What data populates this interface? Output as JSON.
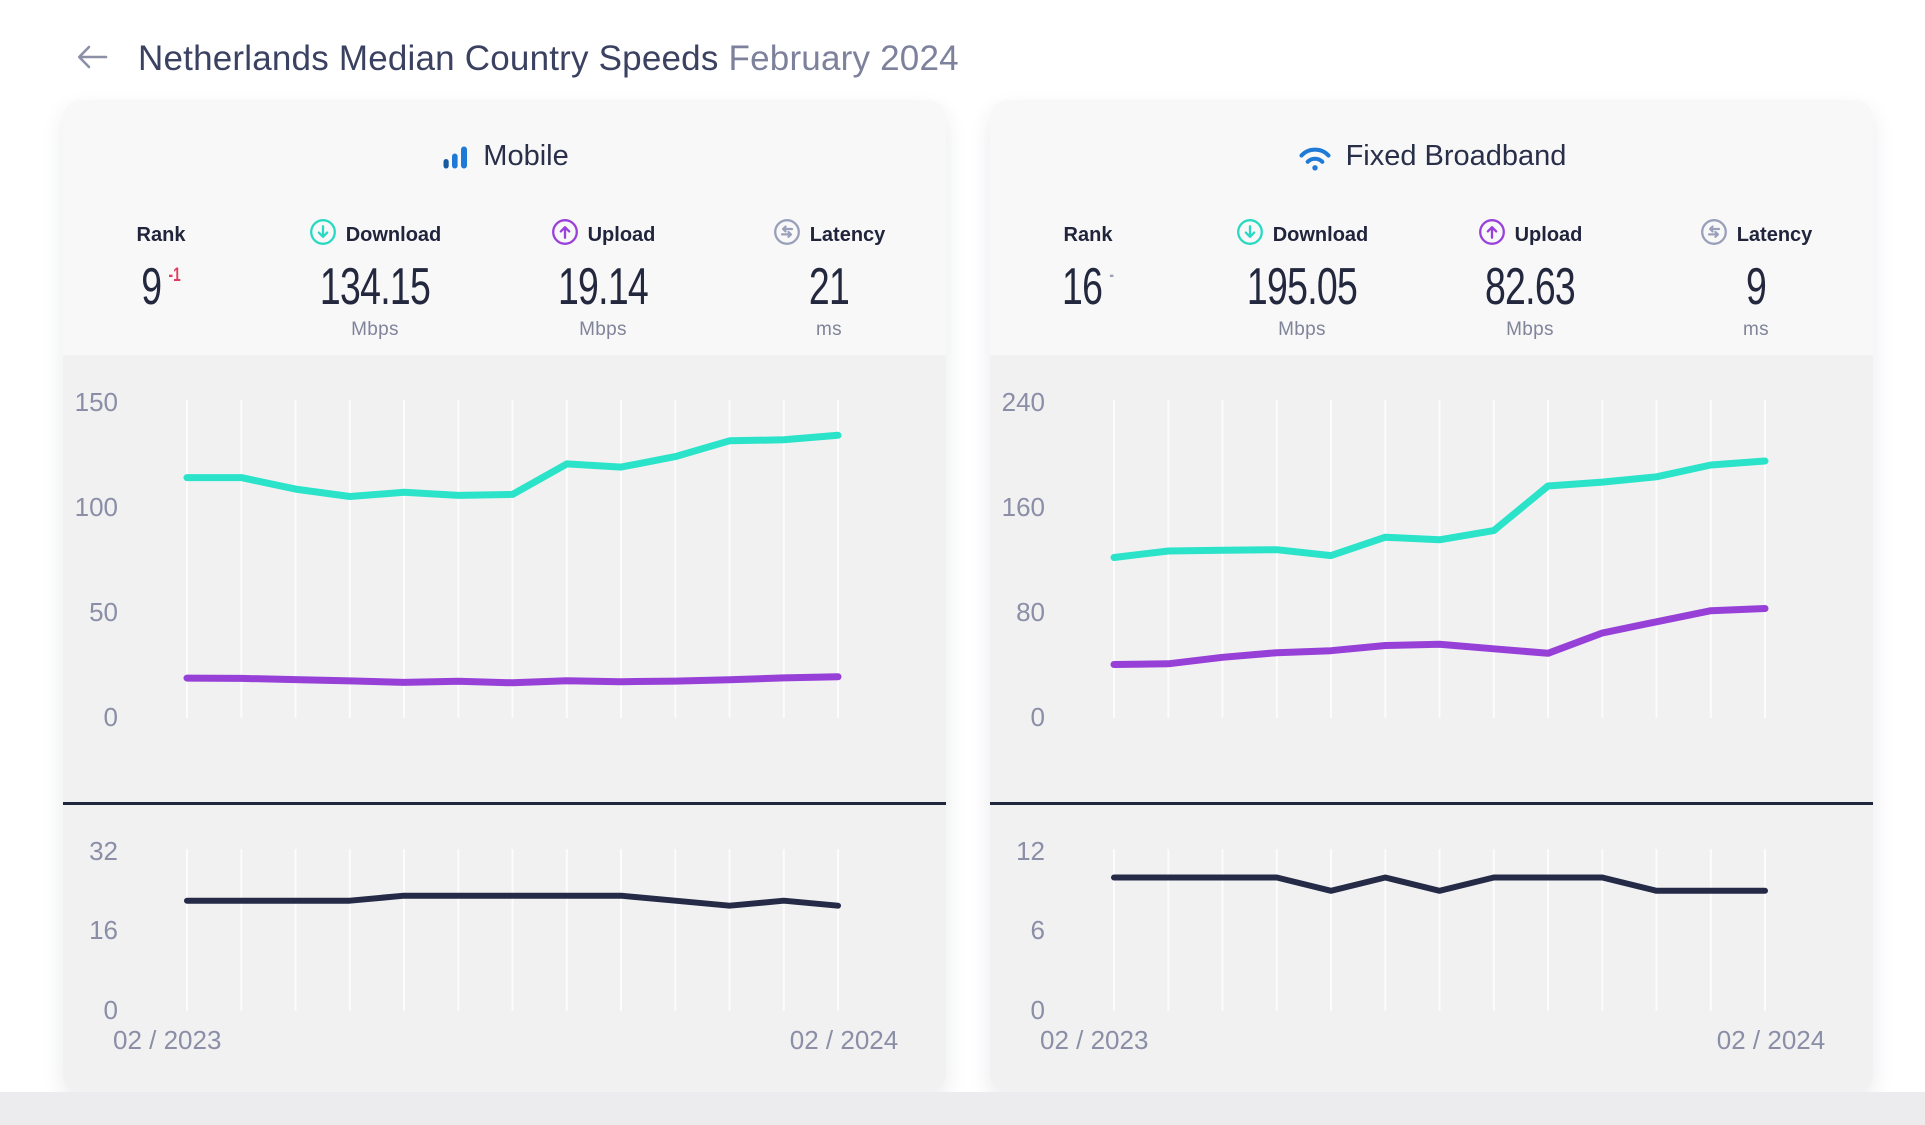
{
  "page": {
    "background": "#ffffff",
    "bottom_strip_color": "#ececee"
  },
  "header": {
    "back_icon": "left-arrow",
    "title": "Netherlands Median Country Speeds",
    "subtitle": "February 2024",
    "title_color": "#3b4160",
    "subtitle_color": "#7d819b"
  },
  "cards": [
    {
      "title": "Mobile",
      "icon": "mobile-signal-bars-icon",
      "stats": {
        "rank": {
          "label": "Rank",
          "value": "9",
          "delta": "-1",
          "delta_color": "#e23b5f"
        },
        "download": {
          "label": "Download",
          "value": "134.15",
          "unit": "Mbps",
          "icon_color": "#2ad9c2"
        },
        "upload": {
          "label": "Upload",
          "value": "19.14",
          "unit": "Mbps",
          "icon_color": "#9a41da"
        },
        "latency": {
          "label": "Latency",
          "value": "21",
          "unit": "ms",
          "icon_color": "#9ba0ba"
        }
      },
      "chart_data": {
        "type": "line",
        "x_labels": [
          "02 / 2023",
          "02 / 2024"
        ],
        "n_points": 13,
        "legend": "none",
        "grid": "vertical-only",
        "main": {
          "ylim": [
            0,
            157.5
          ],
          "y_ticks": [
            150,
            100,
            50,
            0
          ],
          "series": [
            {
              "name": "Download (Mbps)",
              "color": "#2be3c9",
              "values": [
                114,
                114,
                108.5,
                105,
                107,
                105.5,
                106,
                120.5,
                119,
                124,
                131.5,
                132,
                134.15
              ]
            },
            {
              "name": "Upload (Mbps)",
              "color": "#9640d8",
              "values": [
                18.5,
                18.4,
                17.8,
                17.2,
                16.5,
                17,
                16.3,
                17.3,
                16.8,
                17.1,
                17.7,
                18.6,
                19.14
              ]
            }
          ]
        },
        "latency": {
          "ylim": [
            0,
            32
          ],
          "y_ticks": [
            32,
            16,
            0
          ],
          "series": [
            {
              "name": "Latency (ms)",
              "color": "#252b47",
              "values": [
                22,
                22,
                22,
                22,
                23,
                23,
                23,
                23,
                23,
                22,
                21,
                22,
                21
              ]
            }
          ]
        }
      }
    },
    {
      "title": "Fixed Broadband",
      "icon": "wifi-icon",
      "stats": {
        "rank": {
          "label": "Rank",
          "value": "16",
          "delta": "-",
          "delta_color": "#9aa0b5"
        },
        "download": {
          "label": "Download",
          "value": "195.05",
          "unit": "Mbps",
          "icon_color": "#2ad9c2"
        },
        "upload": {
          "label": "Upload",
          "value": "82.63",
          "unit": "Mbps",
          "icon_color": "#9a41da"
        },
        "latency": {
          "label": "Latency",
          "value": "9",
          "unit": "ms",
          "icon_color": "#9ba0ba"
        }
      },
      "chart_data": {
        "type": "line",
        "x_labels": [
          "02 / 2023",
          "02 / 2024"
        ],
        "n_points": 13,
        "legend": "none",
        "grid": "vertical-only",
        "main": {
          "ylim": [
            0,
            252
          ],
          "y_ticks": [
            240,
            160,
            80,
            0
          ],
          "series": [
            {
              "name": "Download (Mbps)",
              "color": "#2be3c9",
              "values": [
                121.5,
                126.5,
                127,
                127.5,
                123,
                137,
                135,
                142,
                176,
                179,
                183,
                192,
                195.05
              ]
            },
            {
              "name": "Upload (Mbps)",
              "color": "#9640d8",
              "values": [
                40,
                40.5,
                45.5,
                49,
                50.5,
                54.5,
                55.5,
                52,
                48.5,
                64,
                72.5,
                81,
                82.63
              ]
            }
          ]
        },
        "latency": {
          "ylim": [
            0,
            12
          ],
          "y_ticks": [
            12,
            6,
            0
          ],
          "series": [
            {
              "name": "Latency (ms)",
              "color": "#252b47",
              "values": [
                10,
                10,
                10,
                10,
                9,
                10,
                9,
                10,
                10,
                10,
                9,
                9,
                9
              ]
            }
          ]
        }
      }
    }
  ]
}
